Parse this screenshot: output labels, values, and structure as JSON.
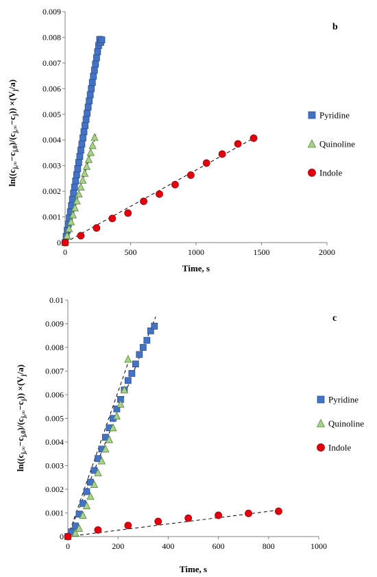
{
  "colors": {
    "pyridine": "#4472c4",
    "pyridine_stroke": "#2f528f",
    "quinoline": "#a9d18e",
    "quinoline_stroke": "#548235",
    "indole": "#e3000f",
    "indole_stroke": "#9c0006"
  },
  "chart_data": [
    {
      "type": "scatter",
      "panel_label": "b",
      "xlabel": "Time, s",
      "ylabel_main": "ln((c",
      "ylabel_full": "ln((cj,∞−cj,0)/(cj,∞−cj)) ×(Vj/a)",
      "xlim": [
        0,
        2000
      ],
      "ylim": [
        0,
        0.009
      ],
      "xticks": [
        "0",
        "500",
        "1000",
        "1500",
        "2000"
      ],
      "yticks": [
        "0",
        "0.001",
        "0.002",
        "0.003",
        "0.004",
        "0.005",
        "0.006",
        "0.007",
        "0.008",
        "0.009"
      ],
      "grid": false,
      "legend_position": "right",
      "series": [
        {
          "name": "Pyridine",
          "marker": "square",
          "x": [
            0,
            8,
            16,
            24,
            32,
            40,
            48,
            56,
            64,
            72,
            80,
            88,
            96,
            104,
            112,
            120,
            128,
            136,
            144,
            152,
            160,
            168,
            176,
            184,
            192,
            200,
            208,
            216,
            224,
            232,
            240,
            248,
            256,
            264,
            272,
            280
          ],
          "y": [
            0.0,
            0.00024,
            0.00048,
            0.00072,
            0.00096,
            0.0012,
            0.00144,
            0.00168,
            0.00192,
            0.00216,
            0.0024,
            0.00264,
            0.00288,
            0.00312,
            0.00336,
            0.0036,
            0.00384,
            0.00408,
            0.00432,
            0.00456,
            0.0048,
            0.00504,
            0.00528,
            0.00552,
            0.00576,
            0.006,
            0.00624,
            0.00648,
            0.00672,
            0.00696,
            0.0072,
            0.00744,
            0.00768,
            0.00792,
            0.0078,
            0.0079
          ],
          "fit": {
            "x": [
              0,
              275
            ],
            "y": [
              0,
              0.0079
            ]
          }
        },
        {
          "name": "Quinoline",
          "marker": "triangle",
          "x": [
            0,
            15,
            30,
            45,
            60,
            75,
            90,
            105,
            120,
            135,
            150,
            165,
            180,
            195,
            210,
            225
          ],
          "y": [
            0.0,
            0.00027,
            0.00054,
            0.00081,
            0.00108,
            0.00135,
            0.00162,
            0.00189,
            0.00216,
            0.00243,
            0.0027,
            0.00297,
            0.00324,
            0.00351,
            0.00378,
            0.0041
          ],
          "fit": {
            "x": [
              0,
              235
            ],
            "y": [
              0,
              0.0042
            ]
          }
        },
        {
          "name": "Indole",
          "marker": "circle",
          "x": [
            0,
            120,
            240,
            360,
            480,
            600,
            720,
            840,
            960,
            1080,
            1200,
            1320,
            1440
          ],
          "y": [
            0.0,
            0.00027,
            0.00057,
            0.00094,
            0.00115,
            0.00161,
            0.00189,
            0.00226,
            0.00263,
            0.0031,
            0.00345,
            0.00385,
            0.00407
          ],
          "fit": {
            "x": [
              0,
              1440
            ],
            "y": [
              0,
              0.00407
            ]
          }
        }
      ]
    },
    {
      "type": "scatter",
      "panel_label": "c",
      "xlabel": "Time, s",
      "ylabel_main": "ln((c",
      "ylabel_full": "ln((cj,∞−cj,0)/(cj,∞−cj)) ×(Vj/a)",
      "xlim": [
        0,
        1000
      ],
      "ylim": [
        0,
        0.01
      ],
      "xticks": [
        "0",
        "200",
        "400",
        "600",
        "800",
        "1000"
      ],
      "yticks": [
        "0",
        "0.001",
        "0.002",
        "0.003",
        "0.004",
        "0.005",
        "0.006",
        "0.007",
        "0.008",
        "0.009",
        "0.01"
      ],
      "grid": false,
      "legend_position": "right",
      "series": [
        {
          "name": "Pyridine",
          "marker": "square",
          "x": [
            0,
            15,
            30,
            45,
            60,
            75,
            90,
            105,
            120,
            135,
            150,
            165,
            180,
            195,
            210,
            225,
            240,
            255,
            270,
            285,
            300,
            315,
            330,
            345
          ],
          "y": [
            0.0,
            0.0002,
            0.00045,
            0.00095,
            0.0014,
            0.0019,
            0.0023,
            0.0028,
            0.0033,
            0.0037,
            0.0042,
            0.0046,
            0.005,
            0.0054,
            0.0058,
            0.0062,
            0.0066,
            0.0069,
            0.0073,
            0.0077,
            0.008,
            0.0083,
            0.0087,
            0.0089
          ],
          "fit": {
            "x": [
              0,
              350
            ],
            "y": [
              0,
              0.0093
            ]
          }
        },
        {
          "name": "Quinoline",
          "marker": "triangle",
          "x": [
            0,
            30,
            45,
            60,
            75,
            90,
            105,
            120,
            135,
            150,
            165,
            180,
            195,
            210,
            225,
            240
          ],
          "y": [
            0.0,
            0.00015,
            0.00035,
            0.0009,
            0.0013,
            0.0017,
            0.0022,
            0.0027,
            0.0032,
            0.0037,
            0.0041,
            0.0046,
            0.0051,
            0.0056,
            0.0062,
            0.0075
          ],
          "fit": {
            "x": [
              0,
              245
            ],
            "y": [
              0,
              0.0075
            ]
          }
        },
        {
          "name": "Indole",
          "marker": "circle",
          "x": [
            0,
            120,
            240,
            360,
            480,
            600,
            720,
            840
          ],
          "y": [
            0.0,
            0.00028,
            0.00047,
            0.00064,
            0.00078,
            0.0009,
            0.00098,
            0.00107
          ],
          "fit": {
            "x": [
              0,
              840
            ],
            "y": [
              0,
              0.00112
            ]
          }
        }
      ]
    }
  ]
}
